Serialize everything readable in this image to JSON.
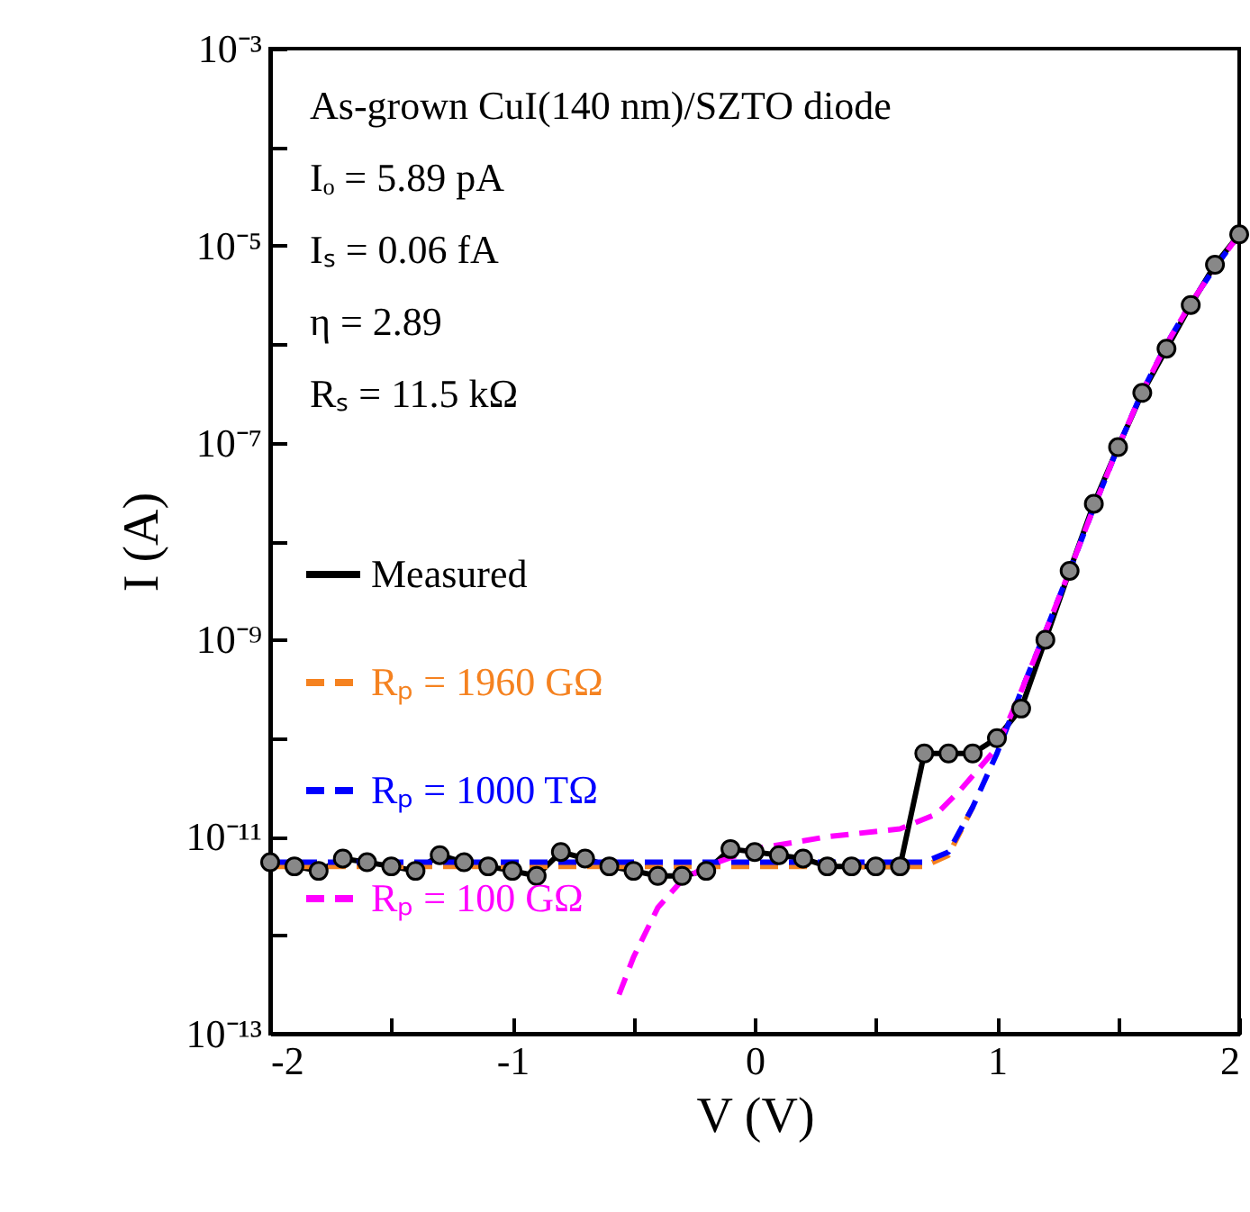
{
  "chart_data": {
    "type": "line",
    "xlabel": "V (V)",
    "ylabel": "I (A)",
    "log": true,
    "grid": false,
    "legend": "left",
    "xlim": [
      -2,
      2
    ],
    "xticks": [
      -2,
      {
        "value": -1.5,
        "label": null
      },
      -1,
      {
        "value": -0.5,
        "label": null
      },
      0,
      {
        "value": 0.5,
        "label": null
      },
      1,
      {
        "value": 1.5,
        "label": null
      },
      2
    ],
    "ylim": [
      1e-13,
      0.001
    ],
    "yticks": [
      {
        "value": 1e-13,
        "label": "10⁻¹³"
      },
      {
        "value": 1e-12,
        "label": null
      },
      {
        "value": 1e-11,
        "label": "10⁻¹¹"
      },
      {
        "value": 1e-10,
        "label": null
      },
      {
        "value": 1e-09,
        "label": "10⁻⁹"
      },
      {
        "value": 1e-08,
        "label": null
      },
      {
        "value": 1e-07,
        "label": "10⁻⁷"
      },
      {
        "value": 1e-06,
        "label": null
      },
      {
        "value": 1e-05,
        "label": "10⁻⁵"
      },
      {
        "value": 0.0001,
        "label": null
      },
      {
        "value": 0.001,
        "label": "10⁻³"
      }
    ],
    "annotations": [
      "As-grown CuI(140 nm)/SZTO diode",
      "Iₒ = 5.89 pA",
      "Iₛ = 0.06 fA",
      "η = 2.89",
      "Rₛ = 11.5 kΩ"
    ],
    "series": [
      {
        "name": "Measured",
        "color": "#000000",
        "marker": "circle",
        "line_style": "solid",
        "x": [
          -2,
          -1.9,
          -1.8,
          -1.7,
          -1.6,
          -1.5,
          -1.4,
          -1.3,
          -1.2,
          -1.1,
          -1,
          -0.9,
          -0.8,
          -0.7,
          -0.6,
          -0.5,
          -0.4,
          -0.3,
          -0.2,
          -0.1,
          0,
          0.1,
          0.2,
          0.3,
          0.4,
          0.5,
          0.6,
          0.7,
          0.8,
          0.9,
          1,
          1.1,
          1.2,
          1.3,
          1.4,
          1.5,
          1.6,
          1.7,
          1.8,
          1.9,
          2
        ],
        "values": [
          5.5e-12,
          5e-12,
          4.5e-12,
          6e-12,
          5.5e-12,
          5e-12,
          4.5e-12,
          6.5e-12,
          5.5e-12,
          5e-12,
          4.5e-12,
          4e-12,
          7e-12,
          6e-12,
          5e-12,
          4.5e-12,
          4e-12,
          4e-12,
          4.5e-12,
          7.5e-12,
          7e-12,
          6.5e-12,
          6e-12,
          5e-12,
          5e-12,
          5e-12,
          5e-12,
          7e-11,
          7e-11,
          7e-11,
          1e-10,
          2e-10,
          1e-09,
          5e-09,
          2.4e-08,
          9e-08,
          3.2e-07,
          9e-07,
          2.5e-06,
          6.4e-06,
          1.3e-05
        ]
      },
      {
        "name": "Rₚ = 1960 GΩ",
        "color": "#f58220",
        "marker": "none",
        "line_style": "dashed",
        "x": [
          -2,
          -1,
          0,
          0.7,
          0.8,
          0.9
        ],
        "values": [
          5e-12,
          5e-12,
          5e-12,
          5e-12,
          6.5e-12,
          2e-11
        ]
      },
      {
        "name": "Rₚ = 1000 TΩ",
        "color": "#0000ff",
        "marker": "none",
        "line_style": "dashed",
        "x": [
          -2,
          -1,
          0,
          0.7,
          0.8,
          0.9,
          1,
          1.1,
          1.2,
          1.3,
          1.4,
          1.5,
          1.6,
          1.7,
          1.8,
          1.9,
          2
        ],
        "values": [
          5.5e-12,
          5.5e-12,
          5.5e-12,
          5.5e-12,
          7e-12,
          2e-11,
          7e-11,
          3e-10,
          1.2e-09,
          5e-09,
          2.2e-08,
          9e-08,
          3.3e-07,
          1e-06,
          2.6e-06,
          6e-06,
          1.3e-05
        ]
      },
      {
        "name": "Rₚ = 100 GΩ",
        "color": "#ff00ff",
        "marker": "none",
        "line_style": "dashed",
        "x": [
          -0.56,
          -0.5,
          -0.4,
          -0.3,
          -0.2,
          0,
          0.3,
          0.6,
          0.75,
          0.85,
          1,
          1.1,
          1.2,
          1.3,
          1.4,
          1.5,
          1.6,
          1.7,
          1.8,
          1.9,
          2
        ],
        "values": [
          2.5e-13,
          6e-13,
          1.9e-12,
          3.6e-12,
          5e-12,
          7.5e-12,
          1e-11,
          1.2e-11,
          1.7e-11,
          3e-11,
          8e-11,
          3e-10,
          1.2e-09,
          5e-09,
          2.2e-08,
          9e-08,
          3.3e-07,
          1e-06,
          2.6e-06,
          6e-06,
          1.3e-05
        ]
      }
    ]
  }
}
